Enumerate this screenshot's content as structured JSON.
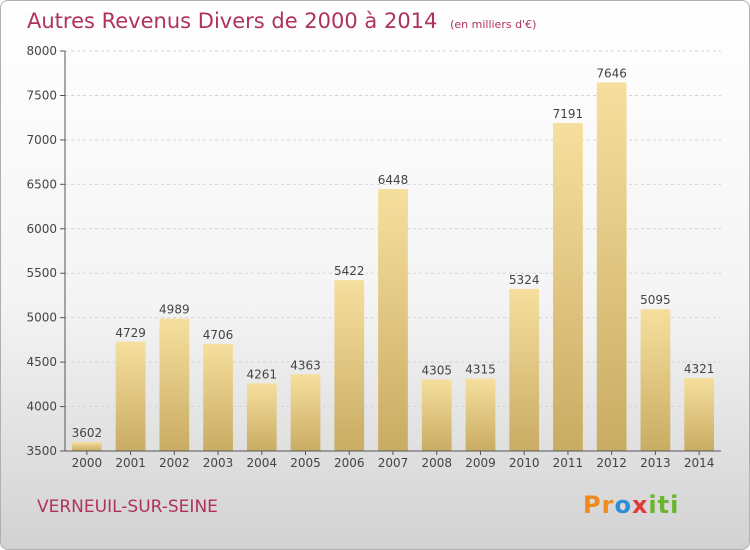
{
  "chart_data": {
    "type": "bar",
    "title": "Autres Revenus Divers de 2000 à 2014",
    "subtitle": "(en milliers d'€)",
    "categories": [
      "2000",
      "2001",
      "2002",
      "2003",
      "2004",
      "2005",
      "2006",
      "2007",
      "2008",
      "2009",
      "2010",
      "2011",
      "2012",
      "2013",
      "2014"
    ],
    "values": [
      3602,
      4729,
      4989,
      4706,
      4261,
      4363,
      5422,
      6448,
      4305,
      4315,
      5324,
      7191,
      7646,
      5095,
      4321
    ],
    "ylim": [
      3500,
      8000
    ],
    "yticks": [
      3500,
      4000,
      4500,
      5000,
      5500,
      6000,
      6500,
      7000,
      7500,
      8000
    ],
    "grid": true,
    "bar_color": "#e8cf86"
  },
  "footer": {
    "place": "VERNEUIL-SUR-SEINE",
    "logo": "Proxiti"
  },
  "colors": {
    "title": "#b03060",
    "axis": "#555555"
  }
}
